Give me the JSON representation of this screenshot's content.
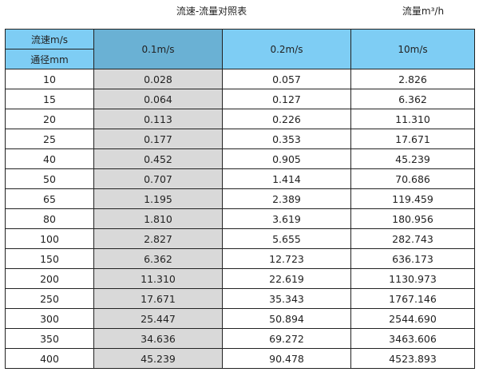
{
  "title": "流速-流量对照表",
  "unit_label": "流量m³/h",
  "header": {
    "velocity_label": "流速m/s",
    "diameter_label": "通径mm",
    "columns": [
      "0.1m/s",
      "0.2m/s",
      "10m/s"
    ]
  },
  "colors": {
    "header": "#7ecdf4",
    "selected_header": "#6ab1d4",
    "highlight_column": "#d9d9d9"
  },
  "rows": [
    [
      "10",
      "0.028",
      "0.057",
      "2.826"
    ],
    [
      "15",
      "0.064",
      "0.127",
      "6.362"
    ],
    [
      "20",
      "0.113",
      "0.226",
      "11.310"
    ],
    [
      "25",
      "0.177",
      "0.353",
      "17.671"
    ],
    [
      "40",
      "0.452",
      "0.905",
      "45.239"
    ],
    [
      "50",
      "0.707",
      "1.414",
      "70.686"
    ],
    [
      "65",
      "1.195",
      "2.389",
      "119.459"
    ],
    [
      "80",
      "1.810",
      "3.619",
      "180.956"
    ],
    [
      "100",
      "2.827",
      "5.655",
      "282.743"
    ],
    [
      "150",
      "6.362",
      "12.723",
      "636.173"
    ],
    [
      "200",
      "11.310",
      "22.619",
      "1130.973"
    ],
    [
      "250",
      "17.671",
      "35.343",
      "1767.146"
    ],
    [
      "300",
      "25.447",
      "50.894",
      "2544.690"
    ],
    [
      "350",
      "34.636",
      "69.272",
      "3463.606"
    ],
    [
      "400",
      "45.239",
      "90.478",
      "4523.893"
    ]
  ]
}
